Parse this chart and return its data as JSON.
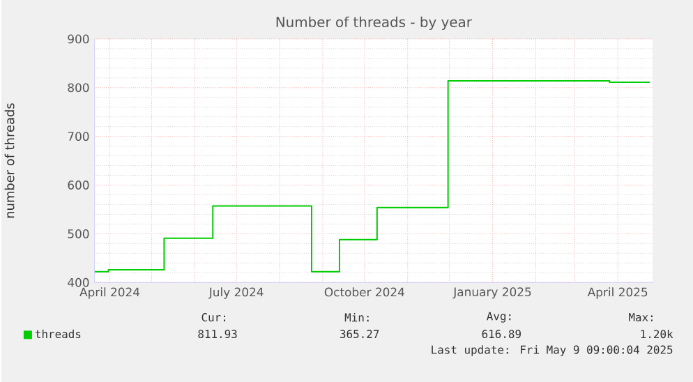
{
  "chart_data": {
    "type": "step",
    "title": "Number of threads - by year",
    "ylabel": "number of threads",
    "x": [
      "2024-03-21",
      "2024-03-31",
      "2024-05-10",
      "2024-06-14",
      "2024-08-24",
      "2024-09-13",
      "2024-10-10",
      "2024-11-30",
      "2025-03-26",
      "2025-04-24"
    ],
    "series": [
      {
        "name": "threads",
        "color": "#00cc00",
        "values": [
          422,
          426,
          491,
          557,
          422,
          488,
          554,
          814,
          811,
          811
        ]
      }
    ],
    "xlim": [
      "2024-03-21",
      "2025-04-26"
    ],
    "ylim": [
      400,
      900
    ],
    "xticks": [
      {
        "value": "2024-04-01",
        "label": "April 2024"
      },
      {
        "value": "2024-05-01",
        "label": null
      },
      {
        "value": "2024-06-01",
        "label": null
      },
      {
        "value": "2024-07-01",
        "label": "July 2024"
      },
      {
        "value": "2024-08-01",
        "label": null
      },
      {
        "value": "2024-09-01",
        "label": null
      },
      {
        "value": "2024-10-01",
        "label": "October 2024"
      },
      {
        "value": "2024-11-01",
        "label": null
      },
      {
        "value": "2024-12-01",
        "label": null
      },
      {
        "value": "2025-01-01",
        "label": "January 2025"
      },
      {
        "value": "2025-02-01",
        "label": null
      },
      {
        "value": "2025-03-01",
        "label": null
      },
      {
        "value": "2025-04-01",
        "label": "April 2025"
      }
    ],
    "yticks": [
      400,
      500,
      600,
      700,
      800,
      900
    ],
    "grid": true,
    "legend": "bottom left",
    "annotations": [
      "Cur:",
      "Min:",
      "Avg:",
      "Max:",
      "811.93",
      "365.27",
      "616.89",
      "1.20k",
      "Last update: Fri May  9 09:00:04 2025"
    ]
  }
}
